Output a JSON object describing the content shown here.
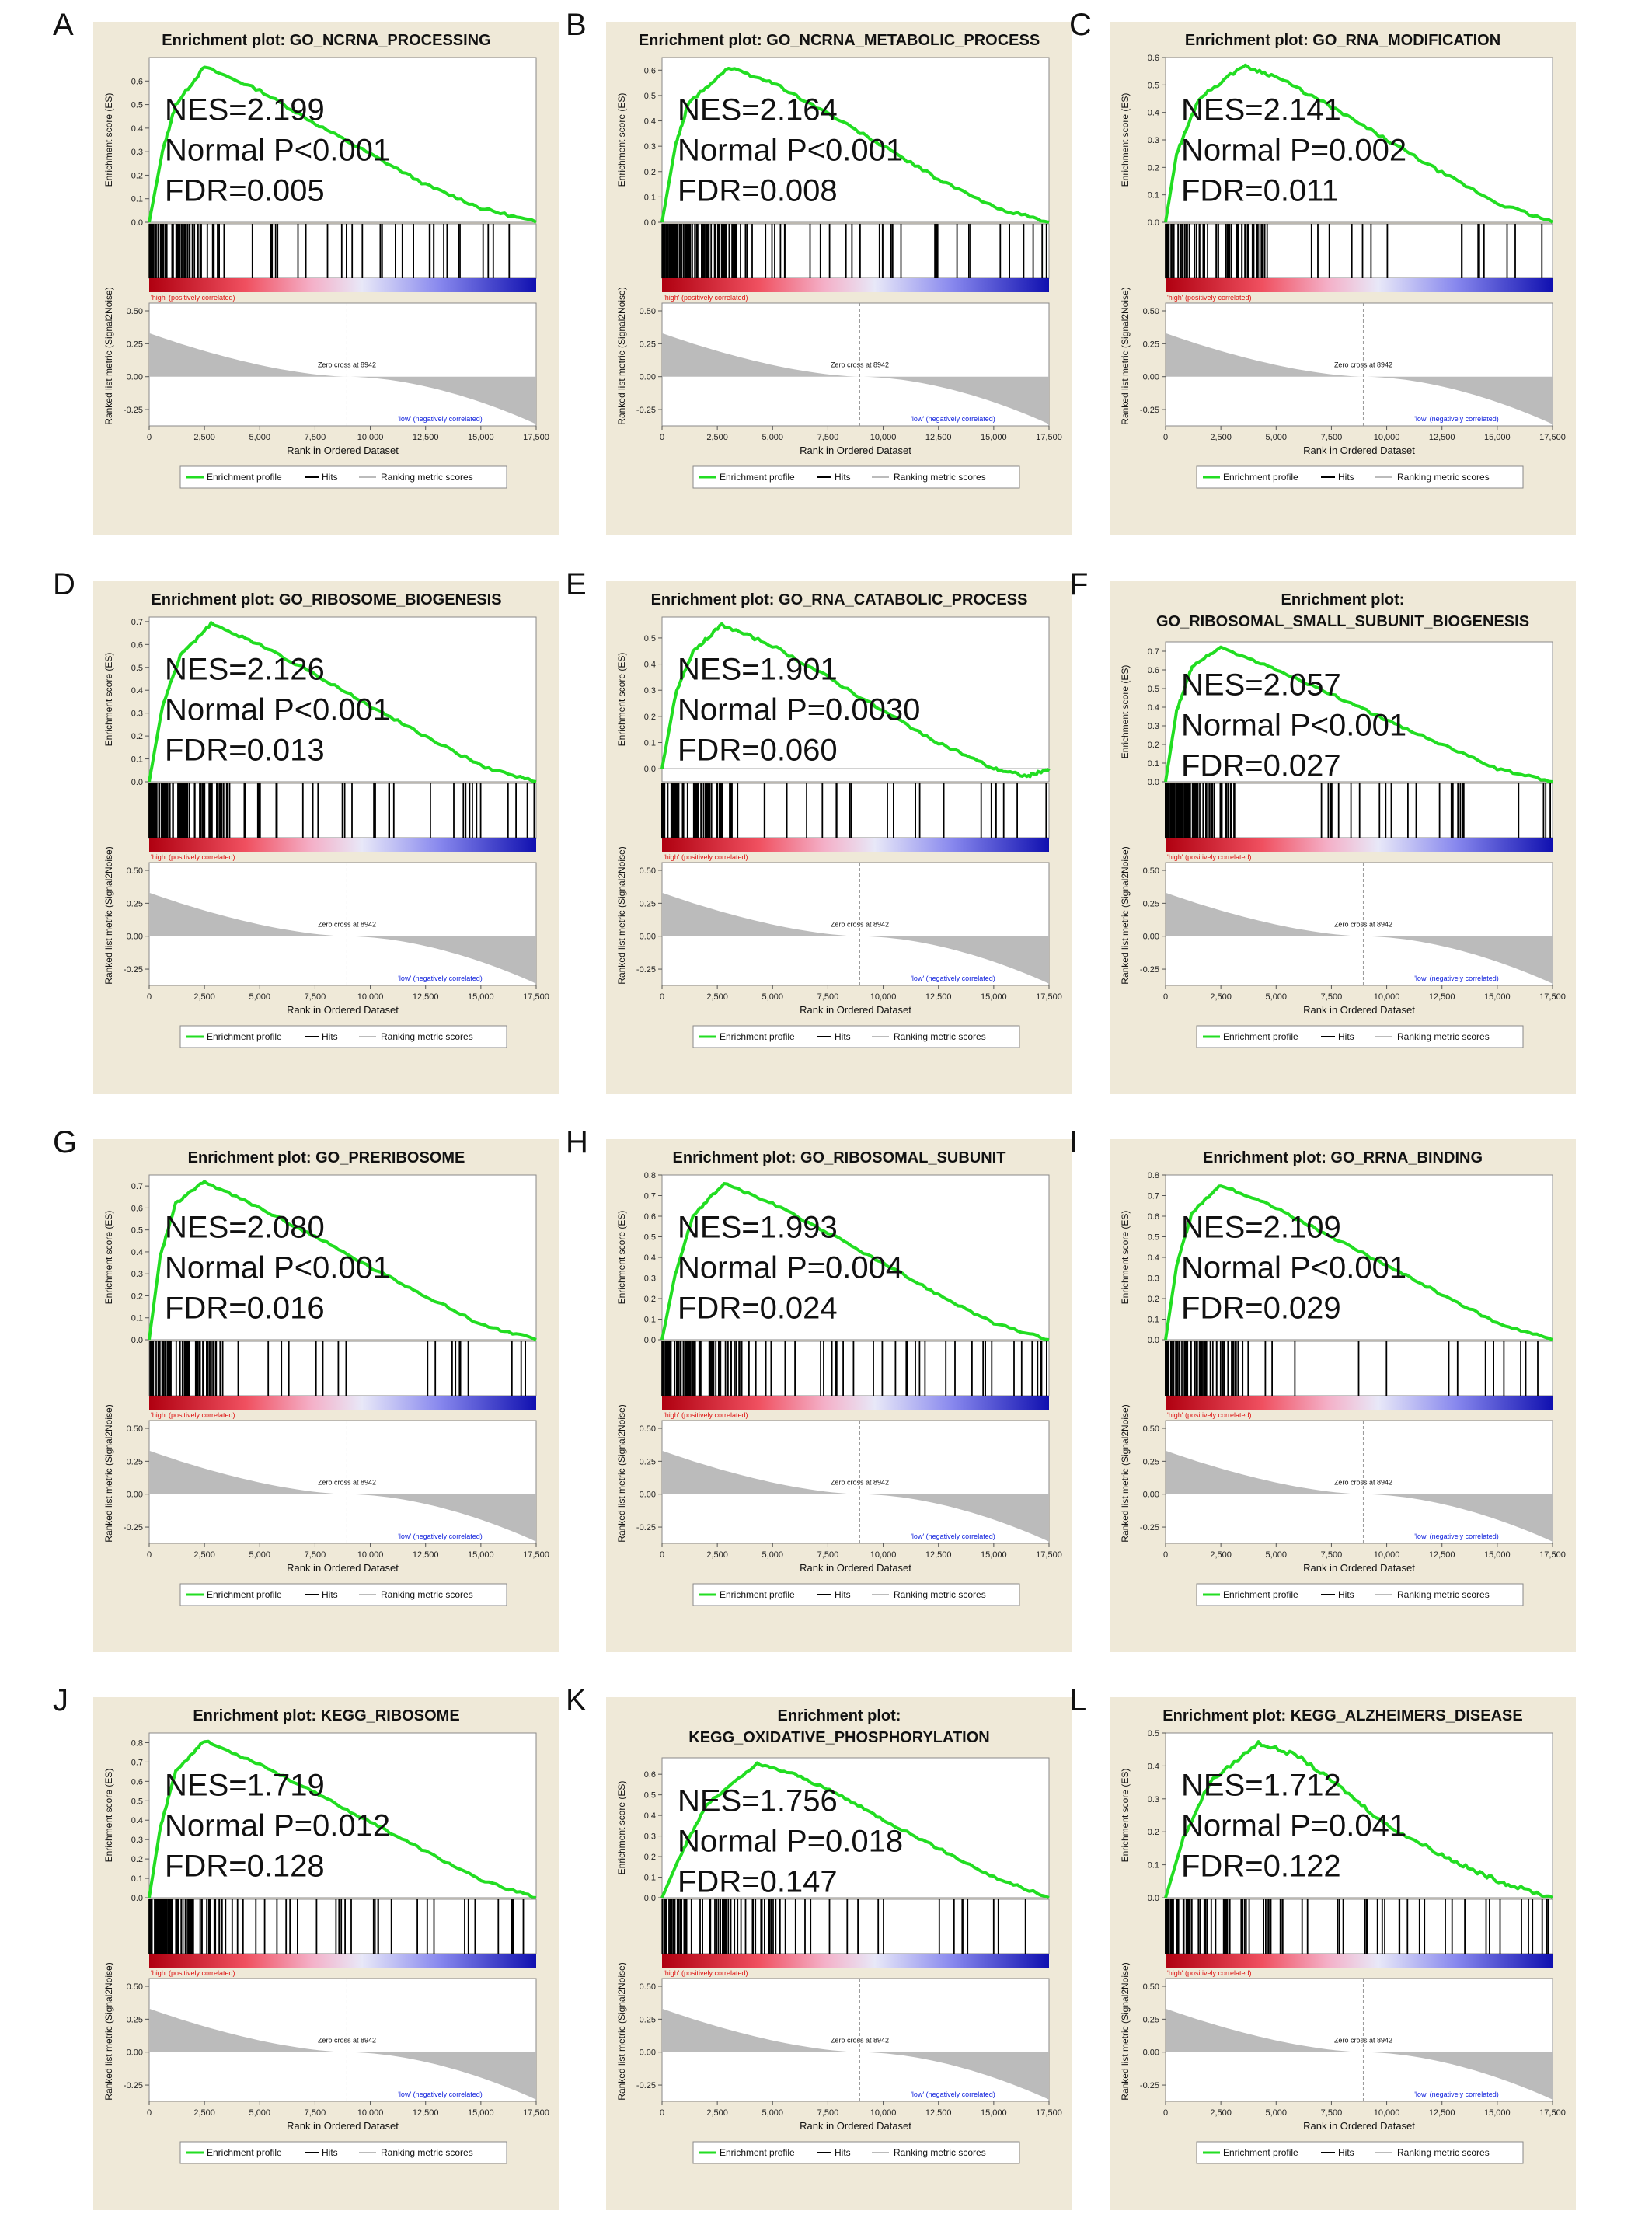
{
  "figure": {
    "y_label_es": "Enrichment score (ES)",
    "y_label_metric": "Ranked list metric (Signal2Noise)",
    "x_label": "Rank in Ordered Dataset",
    "zero_cross_label": "Zero cross at 8942",
    "high_label": "'high' (positively correlated)",
    "low_label": "'low' (negatively correlated)",
    "legend": {
      "profile": "Enrichment profile",
      "hits": "Hits",
      "ranking": "Ranking metric scores"
    },
    "colors": {
      "profile": "#22dd22",
      "panel_bg": "#efe9d8",
      "hits": "#000000",
      "metric": "#bbbbbb"
    },
    "x_ticks": [
      "0",
      "2,500",
      "5,000",
      "7,500",
      "10,000",
      "12,500",
      "15,000",
      "17,500"
    ],
    "metric_ticks": [
      "0.50",
      "0.25",
      "0.00",
      "-0.25"
    ]
  },
  "panels": [
    {
      "letter": "A",
      "title1": "Enrichment plot: GO_NCRNA_PROCESSING",
      "title2": "",
      "nes": "NES=2.199",
      "p": "Normal P<0.001",
      "fdr": "FDR=0.005",
      "es_ticks": [
        "0.6",
        "0.5",
        "0.4",
        "0.3",
        "0.2",
        "0.1",
        "0.0"
      ],
      "ymax": 0.7
    },
    {
      "letter": "B",
      "title1": "Enrichment plot: GO_NCRNA_METABOLIC_PROCESS",
      "title2": "",
      "nes": "NES=2.164",
      "p": "Normal P<0.001",
      "fdr": "FDR=0.008",
      "es_ticks": [
        "0.6",
        "0.5",
        "0.4",
        "0.3",
        "0.2",
        "0.1",
        "0.0"
      ],
      "ymax": 0.65
    },
    {
      "letter": "C",
      "title1": "Enrichment plot: GO_RNA_MODIFICATION",
      "title2": "",
      "nes": "NES=2.141",
      "p": "Normal P=0.002",
      "fdr": "FDR=0.011",
      "es_ticks": [
        "0.6",
        "0.5",
        "0.4",
        "0.3",
        "0.2",
        "0.1",
        "0.0"
      ],
      "ymax": 0.6
    },
    {
      "letter": "D",
      "title1": "Enrichment plot: GO_RIBOSOME_BIOGENESIS",
      "title2": "",
      "nes": "NES=2.126",
      "p": "Normal P<0.001",
      "fdr": "FDR=0.013",
      "es_ticks": [
        "0.7",
        "0.6",
        "0.5",
        "0.4",
        "0.3",
        "0.2",
        "0.1",
        "0.0"
      ],
      "ymax": 0.72
    },
    {
      "letter": "E",
      "title1": "Enrichment plot: GO_RNA_CATABOLIC_PROCESS",
      "title2": "",
      "nes": "NES=1.901",
      "p": "Normal P=0.0030",
      "fdr": "FDR=0.060",
      "es_ticks": [
        "0.5",
        "0.4",
        "0.3",
        "0.2",
        "0.1",
        "0.0"
      ],
      "ymax": 0.58
    },
    {
      "letter": "F",
      "title1": "Enrichment plot:",
      "title2": "GO_RIBOSOMAL_SMALL_SUBUNIT_BIOGENESIS",
      "nes": "NES=2.057",
      "p": "Normal P<0.001",
      "fdr": "FDR=0.027",
      "es_ticks": [
        "0.7",
        "0.6",
        "0.5",
        "0.4",
        "0.3",
        "0.2",
        "0.1",
        "0.0"
      ],
      "ymax": 0.75
    },
    {
      "letter": "G",
      "title1": "Enrichment plot: GO_PRERIBOSOME",
      "title2": "",
      "nes": "NES=2.080",
      "p": "Normal P<0.001",
      "fdr": "FDR=0.016",
      "es_ticks": [
        "0.7",
        "0.6",
        "0.5",
        "0.4",
        "0.3",
        "0.2",
        "0.1",
        "0.0"
      ],
      "ymax": 0.75
    },
    {
      "letter": "H",
      "title1": "Enrichment plot: GO_RIBOSOMAL_SUBUNIT",
      "title2": "",
      "nes": "NES=1.993",
      "p": "Normal P=0.004",
      "fdr": "FDR=0.024",
      "es_ticks": [
        "0.8",
        "0.7",
        "0.6",
        "0.5",
        "0.4",
        "0.3",
        "0.2",
        "0.1",
        "0.0"
      ],
      "ymax": 0.8
    },
    {
      "letter": "I",
      "title1": "Enrichment plot: GO_RRNA_BINDING",
      "title2": "",
      "nes": "NES=2.109",
      "p": "Normal P<0.001",
      "fdr": "FDR=0.029",
      "es_ticks": [
        "0.8",
        "0.7",
        "0.6",
        "0.5",
        "0.4",
        "0.3",
        "0.2",
        "0.1",
        "0.0"
      ],
      "ymax": 0.8
    },
    {
      "letter": "J",
      "title1": "Enrichment plot: KEGG_RIBOSOME",
      "title2": "",
      "nes": "NES=1.719",
      "p": "Normal P=0.012",
      "fdr": "FDR=0.128",
      "es_ticks": [
        "0.8",
        "0.7",
        "0.6",
        "0.5",
        "0.4",
        "0.3",
        "0.2",
        "0.1",
        "0.0"
      ],
      "ymax": 0.85
    },
    {
      "letter": "K",
      "title1": "Enrichment plot:",
      "title2": "KEGG_OXIDATIVE_PHOSPHORYLATION",
      "nes": "NES=1.756",
      "p": "Normal P=0.018",
      "fdr": "FDR=0.147",
      "es_ticks": [
        "0.6",
        "0.5",
        "0.4",
        "0.3",
        "0.2",
        "0.1",
        "0.0"
      ],
      "ymax": 0.68
    },
    {
      "letter": "L",
      "title1": "Enrichment plot: KEGG_ALZHEIMERS_DISEASE",
      "title2": "",
      "nes": "NES=1.712",
      "p": "Normal P=0.041",
      "fdr": "FDR=0.122",
      "es_ticks": [
        "0.5",
        "0.4",
        "0.3",
        "0.2",
        "0.1",
        "0.0"
      ],
      "ymax": 0.5
    }
  ],
  "chart_data": [
    {
      "type": "line",
      "title": "Enrichment plot: GO_NCRNA_PROCESSING",
      "ylabel": "Enrichment score (ES)",
      "xlabel": "Rank in Ordered Dataset",
      "xlim": [
        0,
        17500
      ],
      "ylim": [
        0,
        0.7
      ],
      "peak": {
        "x": 2500,
        "y": 0.66
      },
      "x": [
        0,
        600,
        1200,
        2500,
        5000,
        7500,
        10000,
        12500,
        15000,
        17500
      ],
      "y": [
        0,
        0.3,
        0.5,
        0.66,
        0.56,
        0.42,
        0.29,
        0.16,
        0.06,
        0.0
      ]
    },
    {
      "type": "line",
      "title": "Enrichment plot: GO_NCRNA_METABOLIC_PROCESS",
      "ylabel": "Enrichment score (ES)",
      "xlabel": "Rank in Ordered Dataset",
      "xlim": [
        0,
        17500
      ],
      "ylim": [
        0,
        0.65
      ],
      "peak": {
        "x": 3000,
        "y": 0.61
      },
      "x": [
        0,
        600,
        1200,
        3000,
        5000,
        7500,
        10000,
        12500,
        15000,
        17500
      ],
      "y": [
        0,
        0.3,
        0.47,
        0.61,
        0.55,
        0.43,
        0.3,
        0.17,
        0.06,
        0.0
      ]
    },
    {
      "type": "line",
      "title": "Enrichment plot: GO_RNA_MODIFICATION",
      "ylabel": "Enrichment score (ES)",
      "xlabel": "Rank in Ordered Dataset",
      "xlim": [
        0,
        17500
      ],
      "ylim": [
        0,
        0.6
      ],
      "peak": {
        "x": 3500,
        "y": 0.57
      },
      "x": [
        0,
        500,
        1500,
        3500,
        5000,
        7500,
        10000,
        12500,
        15000,
        17500
      ],
      "y": [
        0,
        0.25,
        0.45,
        0.57,
        0.53,
        0.42,
        0.3,
        0.18,
        0.07,
        0.0
      ]
    },
    {
      "type": "line",
      "title": "Enrichment plot: GO_RIBOSOME_BIOGENESIS",
      "ylabel": "Enrichment score (ES)",
      "xlabel": "Rank in Ordered Dataset",
      "xlim": [
        0,
        17500
      ],
      "ylim": [
        0,
        0.72
      ],
      "peak": {
        "x": 2800,
        "y": 0.69
      },
      "x": [
        0,
        600,
        1400,
        2800,
        5000,
        7500,
        10000,
        12500,
        15000,
        17500
      ],
      "y": [
        0,
        0.33,
        0.55,
        0.69,
        0.6,
        0.47,
        0.33,
        0.2,
        0.07,
        0.0
      ]
    },
    {
      "type": "line",
      "title": "Enrichment plot: GO_RNA_CATABOLIC_PROCESS",
      "ylabel": "Enrichment score (ES)",
      "xlabel": "Rank in Ordered Dataset",
      "xlim": [
        0,
        17500
      ],
      "ylim": [
        -0.05,
        0.58
      ],
      "peak": {
        "x": 2700,
        "y": 0.55
      },
      "x": [
        0,
        600,
        1400,
        2700,
        5000,
        7500,
        10000,
        12500,
        15000,
        16500,
        17500
      ],
      "y": [
        0,
        0.28,
        0.45,
        0.55,
        0.47,
        0.35,
        0.22,
        0.1,
        0.0,
        -0.03,
        0.0
      ]
    },
    {
      "type": "line",
      "title": "Enrichment plot: GO_RIBOSOMAL_SMALL_SUBUNIT_BIOGENESIS",
      "ylabel": "Enrichment score (ES)",
      "xlabel": "Rank in Ordered Dataset",
      "xlim": [
        0,
        17500
      ],
      "ylim": [
        0,
        0.75
      ],
      "peak": {
        "x": 2500,
        "y": 0.72
      },
      "x": [
        0,
        500,
        1200,
        2500,
        5000,
        7500,
        10000,
        12500,
        15000,
        17500
      ],
      "y": [
        0,
        0.38,
        0.62,
        0.72,
        0.6,
        0.47,
        0.33,
        0.2,
        0.07,
        0.0
      ]
    },
    {
      "type": "line",
      "title": "Enrichment plot: GO_PRERIBOSOME",
      "ylabel": "Enrichment score (ES)",
      "xlabel": "Rank in Ordered Dataset",
      "xlim": [
        0,
        17500
      ],
      "ylim": [
        0,
        0.75
      ],
      "peak": {
        "x": 2500,
        "y": 0.72
      },
      "x": [
        0,
        500,
        1200,
        2500,
        5000,
        7500,
        10000,
        12500,
        15000,
        17500
      ],
      "y": [
        0,
        0.38,
        0.62,
        0.72,
        0.6,
        0.47,
        0.33,
        0.2,
        0.07,
        0.0
      ]
    },
    {
      "type": "line",
      "title": "Enrichment plot: GO_RIBOSOMAL_SUBUNIT",
      "ylabel": "Enrichment score (ES)",
      "xlabel": "Rank in Ordered Dataset",
      "xlim": [
        0,
        17500
      ],
      "ylim": [
        0,
        0.8
      ],
      "peak": {
        "x": 2800,
        "y": 0.76
      },
      "x": [
        0,
        600,
        1400,
        2800,
        5000,
        7500,
        10000,
        12500,
        15000,
        17500
      ],
      "y": [
        0,
        0.32,
        0.6,
        0.76,
        0.66,
        0.52,
        0.37,
        0.22,
        0.08,
        0.0
      ]
    },
    {
      "type": "line",
      "title": "Enrichment plot: GO_RRNA_BINDING",
      "ylabel": "Enrichment score (ES)",
      "xlabel": "Rank in Ordered Dataset",
      "xlim": [
        0,
        17500
      ],
      "ylim": [
        0,
        0.8
      ],
      "peak": {
        "x": 2500,
        "y": 0.75
      },
      "x": [
        0,
        500,
        1200,
        2500,
        5000,
        7500,
        10000,
        12500,
        15000,
        17500
      ],
      "y": [
        0,
        0.36,
        0.62,
        0.75,
        0.64,
        0.5,
        0.36,
        0.22,
        0.08,
        0.0
      ]
    },
    {
      "type": "line",
      "title": "Enrichment plot: KEGG_RIBOSOME",
      "ylabel": "Enrichment score (ES)",
      "xlabel": "Rank in Ordered Dataset",
      "xlim": [
        0,
        17500
      ],
      "ylim": [
        0,
        0.85
      ],
      "peak": {
        "x": 2500,
        "y": 0.81
      },
      "x": [
        0,
        500,
        1200,
        2500,
        5000,
        7500,
        10000,
        12500,
        15000,
        17500
      ],
      "y": [
        0,
        0.36,
        0.65,
        0.81,
        0.69,
        0.54,
        0.39,
        0.24,
        0.09,
        0.0
      ]
    },
    {
      "type": "line",
      "title": "Enrichment plot: KEGG_OXIDATIVE_PHOSPHORYLATION",
      "ylabel": "Enrichment score (ES)",
      "xlabel": "Rank in Ordered Dataset",
      "xlim": [
        0,
        17500
      ],
      "ylim": [
        0,
        0.68
      ],
      "peak": {
        "x": 4300,
        "y": 0.65
      },
      "x": [
        0,
        800,
        2000,
        4300,
        6000,
        8000,
        10000,
        12500,
        15000,
        17500
      ],
      "y": [
        0,
        0.2,
        0.45,
        0.65,
        0.6,
        0.5,
        0.38,
        0.24,
        0.1,
        0.0
      ]
    },
    {
      "type": "line",
      "title": "Enrichment plot: KEGG_ALZHEIMERS_DISEASE",
      "ylabel": "Enrichment score (ES)",
      "xlabel": "Rank in Ordered Dataset",
      "xlim": [
        0,
        17500
      ],
      "ylim": [
        0,
        0.5
      ],
      "peak": {
        "x": 4200,
        "y": 0.47
      },
      "x": [
        0,
        800,
        2000,
        4200,
        6000,
        8000,
        10000,
        12500,
        14000,
        15500,
        17500
      ],
      "y": [
        0,
        0.18,
        0.35,
        0.47,
        0.43,
        0.33,
        0.22,
        0.13,
        0.08,
        0.04,
        0.0
      ]
    }
  ]
}
